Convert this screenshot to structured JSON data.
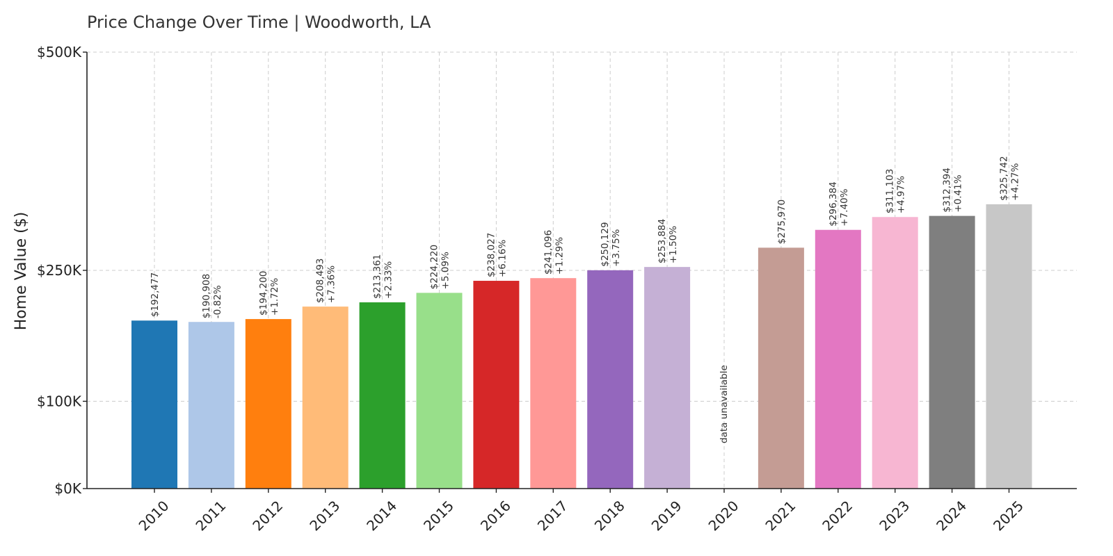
{
  "chart_data": {
    "type": "bar",
    "title": "Price Change Over Time | Woodworth, LA",
    "xlabel": "",
    "ylabel": "Home Value ($)",
    "ylim": [
      0,
      500000
    ],
    "yticks": [
      {
        "value": 0,
        "label": "$0K"
      },
      {
        "value": 100000,
        "label": "$100K"
      },
      {
        "value": 250000,
        "label": "$250K"
      },
      {
        "value": 500000,
        "label": "$500K"
      }
    ],
    "grid": true,
    "missing_label": "data unavailable",
    "categories": [
      "2010",
      "2011",
      "2012",
      "2013",
      "2014",
      "2015",
      "2016",
      "2017",
      "2018",
      "2019",
      "2020",
      "2021",
      "2022",
      "2023",
      "2024",
      "2025"
    ],
    "values": [
      192477,
      190908,
      194200,
      208493,
      213361,
      224220,
      238027,
      241096,
      250129,
      253884,
      null,
      275970,
      296384,
      311103,
      312394,
      325742
    ],
    "value_labels": [
      "$192,477",
      "$190,908",
      "$194,200",
      "$208,493",
      "$213,361",
      "$224,220",
      "$238,027",
      "$241,096",
      "$250,129",
      "$253,884",
      "",
      "$275,970",
      "$296,384",
      "$311,103",
      "$312,394",
      "$325,742"
    ],
    "change_labels": [
      "",
      "-0.82%",
      "+1.72%",
      "+7.36%",
      "+2.33%",
      "+5.09%",
      "+6.16%",
      "+1.29%",
      "+3.75%",
      "+1.50%",
      "",
      "",
      "+7.40%",
      "+4.97%",
      "+0.41%",
      "+4.27%"
    ],
    "colors": [
      "#1f77b4",
      "#aec7e8",
      "#ff7f0e",
      "#ffbb78",
      "#2ca02c",
      "#98df8a",
      "#d62728",
      "#ff9896",
      "#9467bd",
      "#c5b0d5",
      "#8c564b",
      "#c49c94",
      "#e377c2",
      "#f7b6d2",
      "#7f7f7f",
      "#c7c7c7"
    ]
  }
}
